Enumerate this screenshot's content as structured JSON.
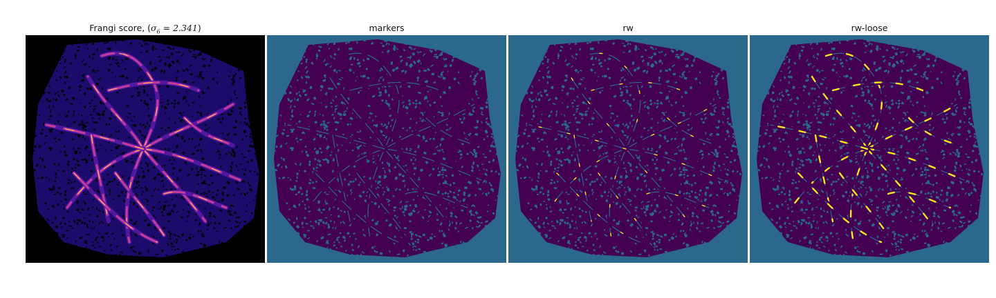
{
  "panels": [
    {
      "title": "Frangi score, (",
      "title_math": "σ6 = 2.341",
      "title_end": ")",
      "kind": "frangi"
    },
    {
      "title": "markers",
      "kind": "markers"
    },
    {
      "title": "rw",
      "kind": "rw"
    },
    {
      "title": "rw-loose",
      "kind": "rwloose"
    }
  ],
  "colors": {
    "frangi_bg": "#000000",
    "frangi_tissue": "#1c0b6b",
    "frangi_vessel_low": "#5a1aa8",
    "frangi_vessel_mid": "#c63a9a",
    "frangi_vessel_high": "#fca16c",
    "label_bg": "#2c688c",
    "label_dark": "#440154",
    "label_yellow": "#f8e621"
  }
}
